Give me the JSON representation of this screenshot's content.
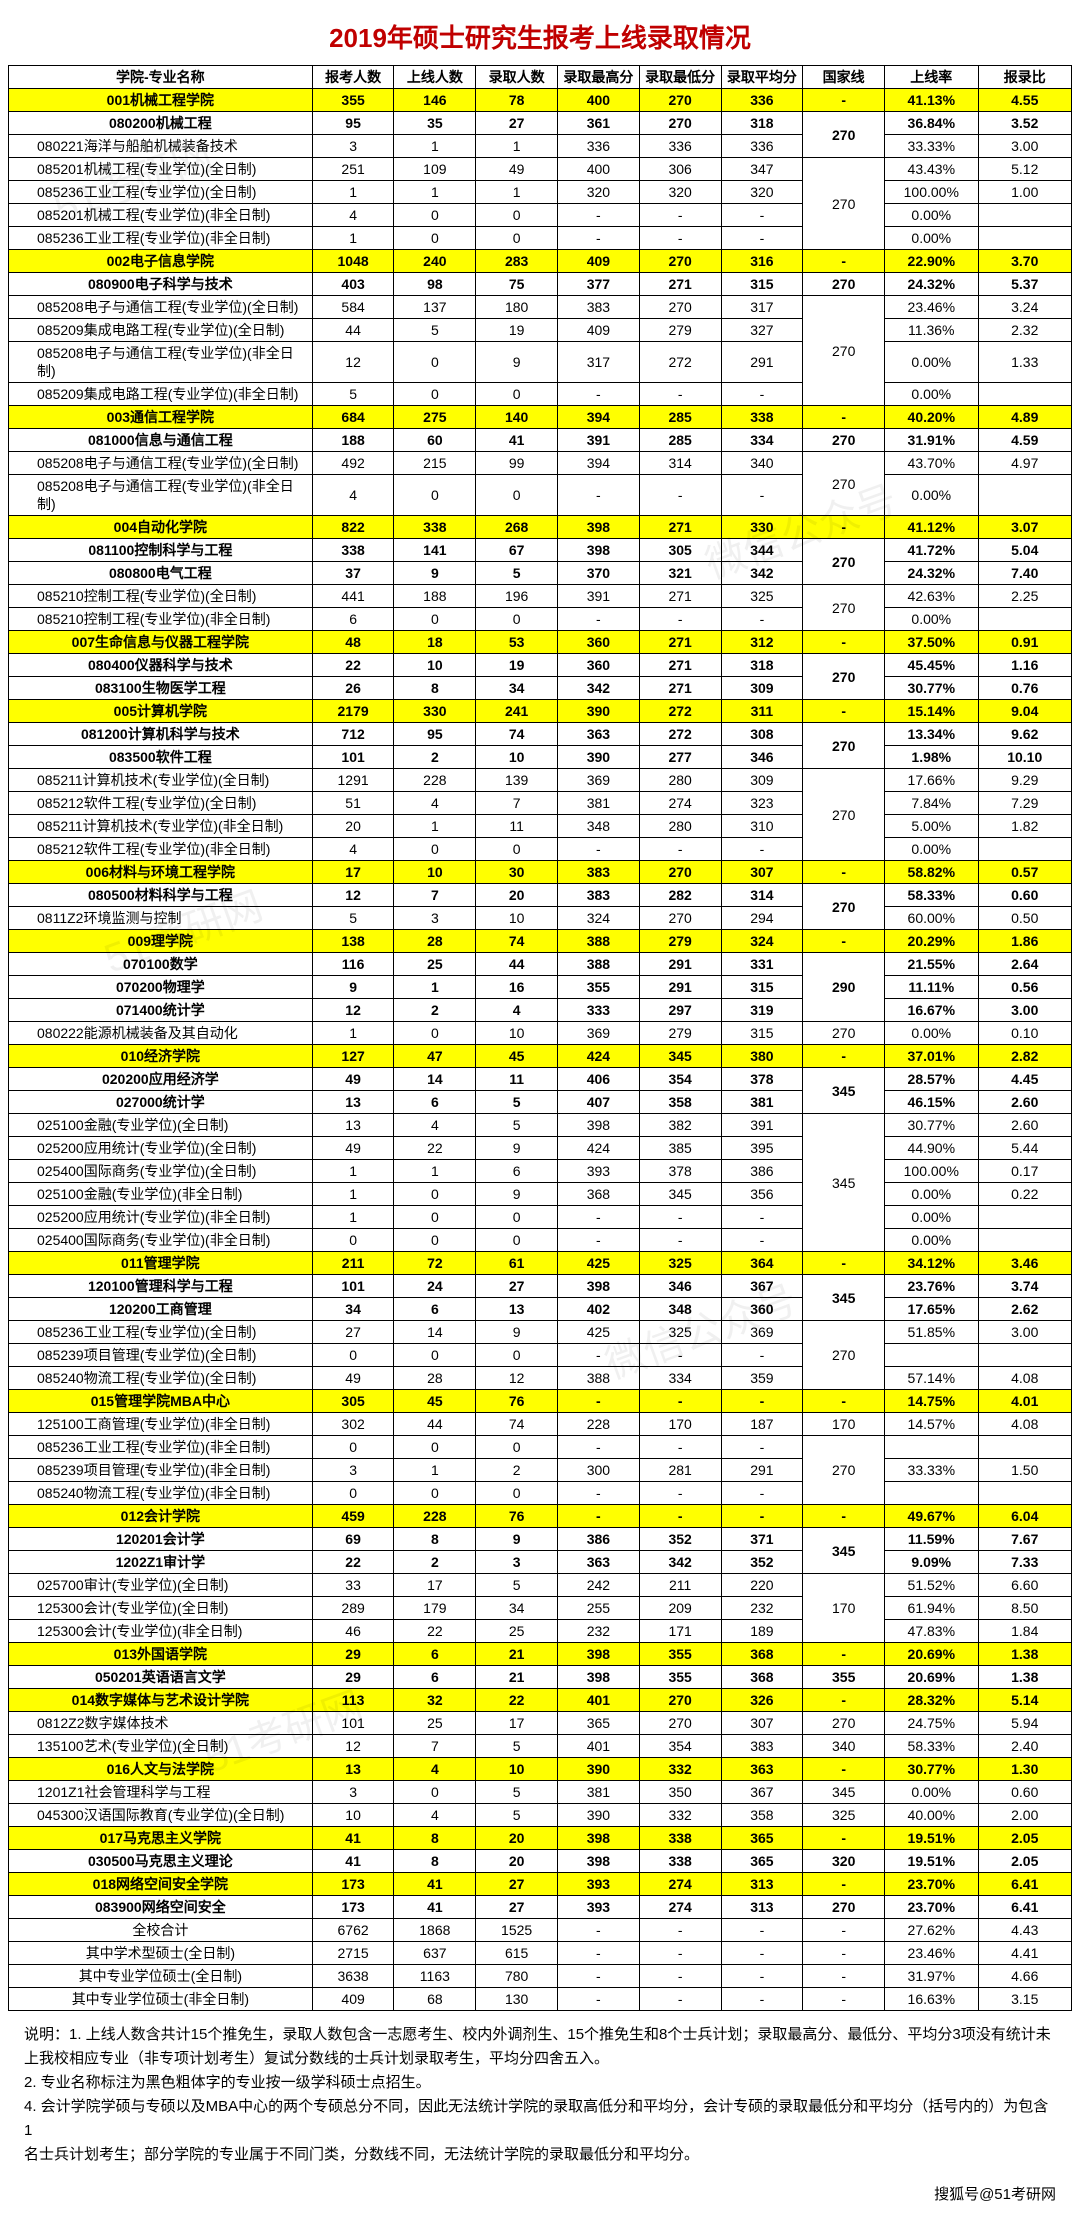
{
  "title": "2019年硕士研究生报考上线录取情况",
  "columns": [
    "学院-专业名称",
    "报考人数",
    "上线人数",
    "录取人数",
    "录取最高分",
    "录取最低分",
    "录取平均分",
    "国家线",
    "上线率",
    "报录比"
  ],
  "rows": [
    {
      "type": "college",
      "name": "001机械工程学院",
      "c": [
        "355",
        "146",
        "78",
        "400",
        "270",
        "336",
        "-",
        "41.13%",
        "4.55"
      ]
    },
    {
      "type": "bold",
      "name": "080200机械工程",
      "c": [
        "95",
        "35",
        "27",
        "361",
        "270",
        "318",
        "",
        "36.84%",
        "3.52"
      ],
      "gx": "270",
      "rs": 2
    },
    {
      "type": "",
      "name": "080221海洋与船舶机械装备技术",
      "c": [
        "3",
        "1",
        "1",
        "336",
        "336",
        "336",
        "",
        "33.33%",
        "3.00"
      ]
    },
    {
      "type": "",
      "name": "085201机械工程(专业学位)(全日制)",
      "c": [
        "251",
        "109",
        "49",
        "400",
        "306",
        "347",
        "",
        "43.43%",
        "5.12"
      ],
      "gx": "270",
      "rs": 4
    },
    {
      "type": "",
      "name": "085236工业工程(专业学位)(全日制)",
      "c": [
        "1",
        "1",
        "1",
        "320",
        "320",
        "320",
        "",
        "100.00%",
        "1.00"
      ]
    },
    {
      "type": "",
      "name": "085201机械工程(专业学位)(非全日制)",
      "c": [
        "4",
        "0",
        "0",
        "-",
        "-",
        "-",
        "",
        "0.00%",
        ""
      ]
    },
    {
      "type": "",
      "name": "085236工业工程(专业学位)(非全日制)",
      "c": [
        "1",
        "0",
        "0",
        "-",
        "-",
        "-",
        "",
        "0.00%",
        ""
      ]
    },
    {
      "type": "college",
      "name": "002电子信息学院",
      "c": [
        "1048",
        "240",
        "283",
        "409",
        "270",
        "316",
        "-",
        "22.90%",
        "3.70"
      ]
    },
    {
      "type": "bold",
      "name": "080900电子科学与技术",
      "c": [
        "403",
        "98",
        "75",
        "377",
        "271",
        "315",
        "270",
        "24.32%",
        "5.37"
      ]
    },
    {
      "type": "",
      "name": "085208电子与通信工程(专业学位)(全日制)",
      "c": [
        "584",
        "137",
        "180",
        "383",
        "270",
        "317",
        "",
        "23.46%",
        "3.24"
      ],
      "gx": "270",
      "rs": 4
    },
    {
      "type": "",
      "name": "085209集成电路工程(专业学位)(全日制)",
      "c": [
        "44",
        "5",
        "19",
        "409",
        "279",
        "327",
        "",
        "11.36%",
        "2.32"
      ]
    },
    {
      "type": "",
      "name": "085208电子与通信工程(专业学位)(非全日制)",
      "c": [
        "12",
        "0",
        "9",
        "317",
        "272",
        "291",
        "",
        "0.00%",
        "1.33"
      ]
    },
    {
      "type": "",
      "name": "085209集成电路工程(专业学位)(非全日制)",
      "c": [
        "5",
        "0",
        "0",
        "-",
        "-",
        "-",
        "",
        "0.00%",
        ""
      ]
    },
    {
      "type": "college",
      "name": "003通信工程学院",
      "c": [
        "684",
        "275",
        "140",
        "394",
        "285",
        "338",
        "-",
        "40.20%",
        "4.89"
      ]
    },
    {
      "type": "bold",
      "name": "081000信息与通信工程",
      "c": [
        "188",
        "60",
        "41",
        "391",
        "285",
        "334",
        "270",
        "31.91%",
        "4.59"
      ]
    },
    {
      "type": "",
      "name": "085208电子与通信工程(专业学位)(全日制)",
      "c": [
        "492",
        "215",
        "99",
        "394",
        "314",
        "340",
        "",
        "43.70%",
        "4.97"
      ],
      "gx": "270",
      "rs": 2
    },
    {
      "type": "",
      "name": "085208电子与通信工程(专业学位)(非全日制)",
      "c": [
        "4",
        "0",
        "0",
        "-",
        "-",
        "-",
        "",
        "0.00%",
        ""
      ]
    },
    {
      "type": "college",
      "name": "004自动化学院",
      "c": [
        "822",
        "338",
        "268",
        "398",
        "271",
        "330",
        "-",
        "41.12%",
        "3.07"
      ]
    },
    {
      "type": "bold",
      "name": "081100控制科学与工程",
      "c": [
        "338",
        "141",
        "67",
        "398",
        "305",
        "344",
        "",
        "41.72%",
        "5.04"
      ],
      "gx": "270",
      "rs": 2
    },
    {
      "type": "bold",
      "name": "080800电气工程",
      "c": [
        "37",
        "9",
        "5",
        "370",
        "321",
        "342",
        "",
        "24.32%",
        "7.40"
      ]
    },
    {
      "type": "",
      "name": "085210控制工程(专业学位)(全日制)",
      "c": [
        "441",
        "188",
        "196",
        "391",
        "271",
        "325",
        "",
        "42.63%",
        "2.25"
      ],
      "gx": "270",
      "rs": 2
    },
    {
      "type": "",
      "name": "085210控制工程(专业学位)(非全日制)",
      "c": [
        "6",
        "0",
        "0",
        "-",
        "-",
        "-",
        "",
        "0.00%",
        ""
      ]
    },
    {
      "type": "college",
      "name": "007生命信息与仪器工程学院",
      "c": [
        "48",
        "18",
        "53",
        "360",
        "271",
        "312",
        "-",
        "37.50%",
        "0.91"
      ]
    },
    {
      "type": "bold",
      "name": "080400仪器科学与技术",
      "c": [
        "22",
        "10",
        "19",
        "360",
        "271",
        "318",
        "",
        "45.45%",
        "1.16"
      ],
      "gx": "270",
      "rs": 2
    },
    {
      "type": "bold",
      "name": "083100生物医学工程",
      "c": [
        "26",
        "8",
        "34",
        "342",
        "271",
        "309",
        "",
        "30.77%",
        "0.76"
      ]
    },
    {
      "type": "college",
      "name": "005计算机学院",
      "c": [
        "2179",
        "330",
        "241",
        "390",
        "272",
        "311",
        "-",
        "15.14%",
        "9.04"
      ]
    },
    {
      "type": "bold",
      "name": "081200计算机科学与技术",
      "c": [
        "712",
        "95",
        "74",
        "363",
        "272",
        "308",
        "",
        "13.34%",
        "9.62"
      ],
      "gx": "270",
      "rs": 2
    },
    {
      "type": "bold",
      "name": "083500软件工程",
      "c": [
        "101",
        "2",
        "10",
        "390",
        "277",
        "346",
        "",
        "1.98%",
        "10.10"
      ]
    },
    {
      "type": "",
      "name": "085211计算机技术(专业学位)(全日制)",
      "c": [
        "1291",
        "228",
        "139",
        "369",
        "280",
        "309",
        "",
        "17.66%",
        "9.29"
      ],
      "gx": "270",
      "rs": 4
    },
    {
      "type": "",
      "name": "085212软件工程(专业学位)(全日制)",
      "c": [
        "51",
        "4",
        "7",
        "381",
        "274",
        "323",
        "",
        "7.84%",
        "7.29"
      ]
    },
    {
      "type": "",
      "name": "085211计算机技术(专业学位)(非全日制)",
      "c": [
        "20",
        "1",
        "11",
        "348",
        "280",
        "310",
        "",
        "5.00%",
        "1.82"
      ]
    },
    {
      "type": "",
      "name": "085212软件工程(专业学位)(非全日制)",
      "c": [
        "4",
        "0",
        "0",
        "-",
        "-",
        "-",
        "",
        "0.00%",
        ""
      ]
    },
    {
      "type": "college",
      "name": "006材料与环境工程学院",
      "c": [
        "17",
        "10",
        "30",
        "383",
        "270",
        "307",
        "-",
        "58.82%",
        "0.57"
      ]
    },
    {
      "type": "bold",
      "name": "080500材料科学与工程",
      "c": [
        "12",
        "7",
        "20",
        "383",
        "282",
        "314",
        "",
        "58.33%",
        "0.60"
      ],
      "gx": "270",
      "rs": 2
    },
    {
      "type": "",
      "name": "0811Z2环境监测与控制",
      "c": [
        "5",
        "3",
        "10",
        "324",
        "270",
        "294",
        "",
        "60.00%",
        "0.50"
      ]
    },
    {
      "type": "college",
      "name": "009理学院",
      "c": [
        "138",
        "28",
        "74",
        "388",
        "279",
        "324",
        "-",
        "20.29%",
        "1.86"
      ]
    },
    {
      "type": "bold",
      "name": "070100数学",
      "c": [
        "116",
        "25",
        "44",
        "388",
        "291",
        "331",
        "",
        "21.55%",
        "2.64"
      ],
      "gx": "290",
      "rs": 3
    },
    {
      "type": "bold",
      "name": "070200物理学",
      "c": [
        "9",
        "1",
        "16",
        "355",
        "291",
        "315",
        "",
        "11.11%",
        "0.56"
      ]
    },
    {
      "type": "bold",
      "name": "071400统计学",
      "c": [
        "12",
        "2",
        "4",
        "333",
        "297",
        "319",
        "",
        "16.67%",
        "3.00"
      ]
    },
    {
      "type": "",
      "name": "080222能源机械装备及其自动化",
      "c": [
        "1",
        "0",
        "10",
        "369",
        "279",
        "315",
        "270",
        "0.00%",
        "0.10"
      ]
    },
    {
      "type": "college",
      "name": "010经济学院",
      "c": [
        "127",
        "47",
        "45",
        "424",
        "345",
        "380",
        "-",
        "37.01%",
        "2.82"
      ]
    },
    {
      "type": "bold",
      "name": "020200应用经济学",
      "c": [
        "49",
        "14",
        "11",
        "406",
        "354",
        "378",
        "",
        "28.57%",
        "4.45"
      ],
      "gx": "345",
      "rs": 2
    },
    {
      "type": "bold",
      "name": "027000统计学",
      "c": [
        "13",
        "6",
        "5",
        "407",
        "358",
        "381",
        "",
        "46.15%",
        "2.60"
      ]
    },
    {
      "type": "",
      "name": "025100金融(专业学位)(全日制)",
      "c": [
        "13",
        "4",
        "5",
        "398",
        "382",
        "391",
        "",
        "30.77%",
        "2.60"
      ],
      "gx": "345",
      "rs": 6
    },
    {
      "type": "",
      "name": "025200应用统计(专业学位)(全日制)",
      "c": [
        "49",
        "22",
        "9",
        "424",
        "385",
        "395",
        "",
        "44.90%",
        "5.44"
      ]
    },
    {
      "type": "",
      "name": "025400国际商务(专业学位)(全日制)",
      "c": [
        "1",
        "1",
        "6",
        "393",
        "378",
        "386",
        "",
        "100.00%",
        "0.17"
      ]
    },
    {
      "type": "",
      "name": "025100金融(专业学位)(非全日制)",
      "c": [
        "1",
        "0",
        "9",
        "368",
        "345",
        "356",
        "",
        "0.00%",
        "0.22"
      ]
    },
    {
      "type": "",
      "name": "025200应用统计(专业学位)(非全日制)",
      "c": [
        "1",
        "0",
        "0",
        "-",
        "-",
        "-",
        "",
        "0.00%",
        ""
      ]
    },
    {
      "type": "",
      "name": "025400国际商务(专业学位)(非全日制)",
      "c": [
        "0",
        "0",
        "0",
        "-",
        "-",
        "-",
        "",
        "0.00%",
        ""
      ]
    },
    {
      "type": "college",
      "name": "011管理学院",
      "c": [
        "211",
        "72",
        "61",
        "425",
        "325",
        "364",
        "-",
        "34.12%",
        "3.46"
      ]
    },
    {
      "type": "bold",
      "name": "120100管理科学与工程",
      "c": [
        "101",
        "24",
        "27",
        "398",
        "346",
        "367",
        "",
        "23.76%",
        "3.74"
      ],
      "gx": "345",
      "rs": 2
    },
    {
      "type": "bold",
      "name": "120200工商管理",
      "c": [
        "34",
        "6",
        "13",
        "402",
        "348",
        "360",
        "",
        "17.65%",
        "2.62"
      ]
    },
    {
      "type": "",
      "name": "085236工业工程(专业学位)(全日制)",
      "c": [
        "27",
        "14",
        "9",
        "425",
        "325",
        "369",
        "",
        "51.85%",
        "3.00"
      ],
      "gx": "270",
      "rs": 3
    },
    {
      "type": "",
      "name": "085239项目管理(专业学位)(全日制)",
      "c": [
        "0",
        "0",
        "0",
        "-",
        "-",
        "-",
        "",
        "",
        ""
      ]
    },
    {
      "type": "",
      "name": "085240物流工程(专业学位)(全日制)",
      "c": [
        "49",
        "28",
        "12",
        "388",
        "334",
        "359",
        "",
        "57.14%",
        "4.08"
      ]
    },
    {
      "type": "college",
      "name": "015管理学院MBA中心",
      "c": [
        "305",
        "45",
        "76",
        "-",
        "-",
        "-",
        "-",
        "14.75%",
        "4.01"
      ]
    },
    {
      "type": "",
      "name": "125100工商管理(专业学位)(非全日制)",
      "c": [
        "302",
        "44",
        "74",
        "228",
        "170",
        "187",
        "170",
        "14.57%",
        "4.08"
      ]
    },
    {
      "type": "",
      "name": "085236工业工程(专业学位)(非全日制)",
      "c": [
        "0",
        "0",
        "0",
        "-",
        "-",
        "-",
        "",
        "",
        ""
      ],
      "gx": "270",
      "rs": 3
    },
    {
      "type": "",
      "name": "085239项目管理(专业学位)(非全日制)",
      "c": [
        "3",
        "1",
        "2",
        "300",
        "281",
        "291",
        "",
        "33.33%",
        "1.50"
      ]
    },
    {
      "type": "",
      "name": "085240物流工程(专业学位)(非全日制)",
      "c": [
        "0",
        "0",
        "0",
        "-",
        "-",
        "-",
        "",
        "",
        ""
      ]
    },
    {
      "type": "college",
      "name": "012会计学院",
      "c": [
        "459",
        "228",
        "76",
        "-",
        "-",
        "-",
        "-",
        "49.67%",
        "6.04"
      ]
    },
    {
      "type": "bold",
      "name": "120201会计学",
      "c": [
        "69",
        "8",
        "9",
        "386",
        "352",
        "371",
        "",
        "11.59%",
        "7.67"
      ],
      "gx": "345",
      "rs": 2
    },
    {
      "type": "bold",
      "name": "1202Z1审计学",
      "c": [
        "22",
        "2",
        "3",
        "363",
        "342",
        "352",
        "",
        "9.09%",
        "7.33"
      ]
    },
    {
      "type": "",
      "name": "025700审计(专业学位)(全日制)",
      "c": [
        "33",
        "17",
        "5",
        "242",
        "211",
        "220",
        "",
        "51.52%",
        "6.60"
      ],
      "gx": "170",
      "rs": 3
    },
    {
      "type": "",
      "name": "125300会计(专业学位)(全日制)",
      "c": [
        "289",
        "179",
        "34",
        "255",
        "209",
        "232",
        "",
        "61.94%",
        "8.50"
      ]
    },
    {
      "type": "",
      "name": "125300会计(专业学位)(非全日制)",
      "c": [
        "46",
        "22",
        "25",
        "232",
        "171",
        "189",
        "",
        "47.83%",
        "1.84"
      ]
    },
    {
      "type": "college",
      "name": "013外国语学院",
      "c": [
        "29",
        "6",
        "21",
        "398",
        "355",
        "368",
        "-",
        "20.69%",
        "1.38"
      ]
    },
    {
      "type": "bold",
      "name": "050201英语语言文学",
      "c": [
        "29",
        "6",
        "21",
        "398",
        "355",
        "368",
        "355",
        "20.69%",
        "1.38"
      ]
    },
    {
      "type": "college",
      "name": "014数字媒体与艺术设计学院",
      "c": [
        "113",
        "32",
        "22",
        "401",
        "270",
        "326",
        "-",
        "28.32%",
        "5.14"
      ]
    },
    {
      "type": "",
      "name": "0812Z2数字媒体技术",
      "c": [
        "101",
        "25",
        "17",
        "365",
        "270",
        "307",
        "270",
        "24.75%",
        "5.94"
      ]
    },
    {
      "type": "",
      "name": "135100艺术(专业学位)(全日制)",
      "c": [
        "12",
        "7",
        "5",
        "401",
        "354",
        "383",
        "340",
        "58.33%",
        "2.40"
      ]
    },
    {
      "type": "college",
      "name": "016人文与法学院",
      "c": [
        "13",
        "4",
        "10",
        "390",
        "332",
        "363",
        "-",
        "30.77%",
        "1.30"
      ]
    },
    {
      "type": "",
      "name": "1201Z1社会管理科学与工程",
      "c": [
        "3",
        "0",
        "5",
        "381",
        "350",
        "367",
        "345",
        "0.00%",
        "0.60"
      ]
    },
    {
      "type": "",
      "name": "045300汉语国际教育(专业学位)(全日制)",
      "c": [
        "10",
        "4",
        "5",
        "390",
        "332",
        "358",
        "325",
        "40.00%",
        "2.00"
      ]
    },
    {
      "type": "college",
      "name": "017马克思主义学院",
      "c": [
        "41",
        "8",
        "20",
        "398",
        "338",
        "365",
        "-",
        "19.51%",
        "2.05"
      ]
    },
    {
      "type": "bold",
      "name": "030500马克思主义理论",
      "c": [
        "41",
        "8",
        "20",
        "398",
        "338",
        "365",
        "320",
        "19.51%",
        "2.05"
      ]
    },
    {
      "type": "college",
      "name": "018网络空间安全学院",
      "c": [
        "173",
        "41",
        "27",
        "393",
        "274",
        "313",
        "-",
        "23.70%",
        "6.41"
      ]
    },
    {
      "type": "bold",
      "name": "083900网络空间安全",
      "c": [
        "173",
        "41",
        "27",
        "393",
        "274",
        "313",
        "270",
        "23.70%",
        "6.41"
      ]
    },
    {
      "type": "summary",
      "name": "全校合计",
      "c": [
        "6762",
        "1868",
        "1525",
        "-",
        "-",
        "-",
        "-",
        "27.62%",
        "4.43"
      ]
    },
    {
      "type": "summary",
      "name": "其中学术型硕士(全日制)",
      "c": [
        "2715",
        "637",
        "615",
        "-",
        "-",
        "-",
        "-",
        "23.46%",
        "4.41"
      ]
    },
    {
      "type": "summary",
      "name": "其中专业学位硕士(全日制)",
      "c": [
        "3638",
        "1163",
        "780",
        "-",
        "-",
        "-",
        "-",
        "31.97%",
        "4.66"
      ]
    },
    {
      "type": "summary",
      "name": "其中专业学位硕士(非全日制)",
      "c": [
        "409",
        "68",
        "130",
        "-",
        "-",
        "-",
        "-",
        "16.63%",
        "3.15"
      ]
    }
  ],
  "notes": [
    "说明：1. 上线人数含共计15个推免生，录取人数包含一志愿考生、校内外调剂生、15个推免生和8个士兵计划；录取最高分、最低分、平均分3项没有统计未上我校相应专业（非专项计划考生）复试分数线的士兵计划录取考生，平均分四舍五入。",
    "2. 专业名称标注为黑色粗体字的专业按一级学科硕士点招生。",
    "4. 会计学院学硕与专硕以及MBA中心的两个专硕总分不同，因此无法统计学院的录取高低分和平均分，会计专硕的录取最低分和平均分（括号内的）为包含1",
    "名士兵计划考生；部分学院的专业属于不同门类，分数线不同，无法统计学院的录取最低分和平均分。"
  ],
  "footer": "搜狐号@51考研网"
}
